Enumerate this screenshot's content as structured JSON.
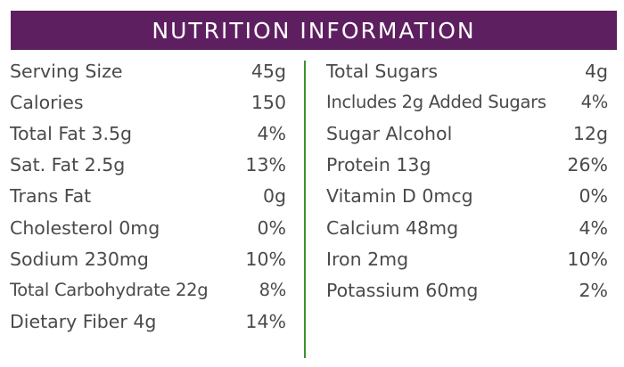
{
  "title": "NUTRITION INFORMATION",
  "colors": {
    "header_bg": "#5e1f60",
    "divider": "#3f8f34",
    "text": "#4a4a4a"
  },
  "left_rows": [
    {
      "label": "Serving Size",
      "value": "45g"
    },
    {
      "label": "Calories",
      "value": "150"
    },
    {
      "label": "Total Fat 3.5g",
      "value": "4%"
    },
    {
      "label": "Sat. Fat 2.5g",
      "value": "13%"
    },
    {
      "label": "Trans Fat",
      "value": "0g"
    },
    {
      "label": "Cholesterol 0mg",
      "value": "0%"
    },
    {
      "label": "Sodium 230mg",
      "value": "10%"
    },
    {
      "label": "Total Carbohydrate 22g",
      "value": "8%"
    },
    {
      "label": "Dietary Fiber 4g",
      "value": "14%"
    }
  ],
  "right_rows": [
    {
      "label": "Total Sugars",
      "value": "4g"
    },
    {
      "label": "Includes 2g Added Sugars",
      "value": "4%"
    },
    {
      "label": "Sugar Alcohol",
      "value": "12g"
    },
    {
      "label": "Protein 13g",
      "value": "26%"
    },
    {
      "label": "Vitamin D 0mcg",
      "value": "0%"
    },
    {
      "label": "Calcium 48mg",
      "value": "4%"
    },
    {
      "label": "Iron 2mg",
      "value": "10%"
    },
    {
      "label": "Potassium 60mg",
      "value": "2%"
    }
  ]
}
